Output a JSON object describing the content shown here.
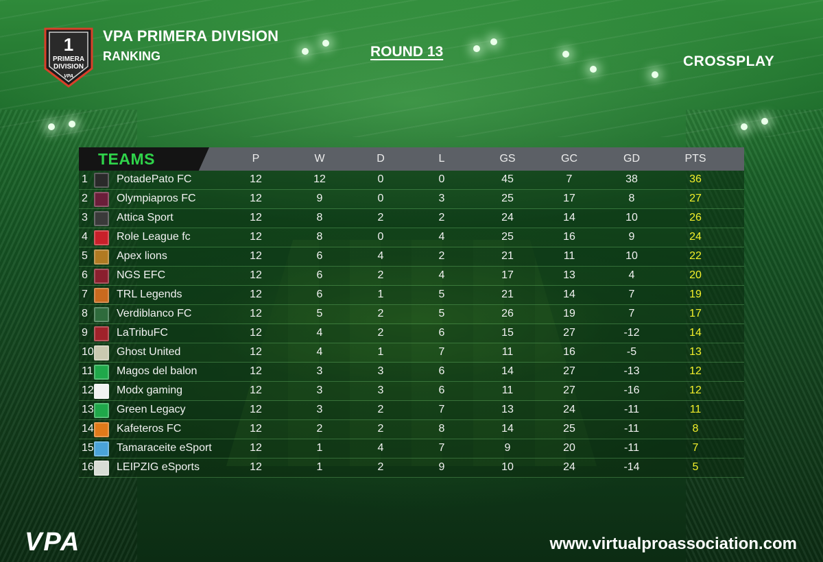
{
  "header": {
    "badge_number": "1",
    "badge_line1": "PRIMERA",
    "badge_line2": "DIVISION",
    "badge_brand": "VPA",
    "title": "VPA PRIMERA DIVISION",
    "subtitle": "RANKING",
    "round": "ROUND 13",
    "platform": "CROSSPLAY"
  },
  "table": {
    "teams_header": "TEAMS",
    "columns": [
      "P",
      "W",
      "D",
      "L",
      "GS",
      "GC",
      "GD",
      "PTS"
    ],
    "rows": [
      {
        "pos": "1",
        "team": "PotadePato FC",
        "P": "12",
        "W": "12",
        "D": "0",
        "L": "0",
        "GS": "45",
        "GC": "7",
        "GD": "38",
        "PTS": "36",
        "logo_color": "#2a2a2a"
      },
      {
        "pos": "2",
        "team": "Olympiapros FC",
        "P": "12",
        "W": "9",
        "D": "0",
        "L": "3",
        "GS": "25",
        "GC": "17",
        "GD": "8",
        "PTS": "27",
        "logo_color": "#6b1e3a"
      },
      {
        "pos": "3",
        "team": "Attica Sport",
        "P": "12",
        "W": "8",
        "D": "2",
        "L": "2",
        "GS": "24",
        "GC": "14",
        "GD": "10",
        "PTS": "26",
        "logo_color": "#3a3a3a"
      },
      {
        "pos": "4",
        "team": "Role League fc",
        "P": "12",
        "W": "8",
        "D": "0",
        "L": "4",
        "GS": "25",
        "GC": "16",
        "GD": "9",
        "PTS": "24",
        "logo_color": "#c8202a"
      },
      {
        "pos": "5",
        "team": "Apex lions",
        "P": "12",
        "W": "6",
        "D": "4",
        "L": "2",
        "GS": "21",
        "GC": "11",
        "GD": "10",
        "PTS": "22",
        "logo_color": "#b07a22"
      },
      {
        "pos": "6",
        "team": "NGS EFC",
        "P": "12",
        "W": "6",
        "D": "2",
        "L": "4",
        "GS": "17",
        "GC": "13",
        "GD": "4",
        "PTS": "20",
        "logo_color": "#8a1f2e"
      },
      {
        "pos": "7",
        "team": "TRL Legends",
        "P": "12",
        "W": "6",
        "D": "1",
        "L": "5",
        "GS": "21",
        "GC": "14",
        "GD": "7",
        "PTS": "19",
        "logo_color": "#c96a1e"
      },
      {
        "pos": "8",
        "team": "Verdiblanco FC",
        "P": "12",
        "W": "5",
        "D": "2",
        "L": "5",
        "GS": "26",
        "GC": "19",
        "GD": "7",
        "PTS": "17",
        "logo_color": "#2e6b3c"
      },
      {
        "pos": "9",
        "team": "LaTribuFC",
        "P": "12",
        "W": "4",
        "D": "2",
        "L": "6",
        "GS": "15",
        "GC": "27",
        "GD": "-12",
        "PTS": "14",
        "logo_color": "#a0222a"
      },
      {
        "pos": "10",
        "team": "Ghost United",
        "P": "12",
        "W": "4",
        "D": "1",
        "L": "7",
        "GS": "11",
        "GC": "16",
        "GD": "-5",
        "PTS": "13",
        "logo_color": "#c9c9b0"
      },
      {
        "pos": "11",
        "team": "Magos del balon",
        "P": "12",
        "W": "3",
        "D": "3",
        "L": "6",
        "GS": "14",
        "GC": "27",
        "GD": "-13",
        "PTS": "12",
        "logo_color": "#1fa84a"
      },
      {
        "pos": "12",
        "team": "Modx gaming",
        "P": "12",
        "W": "3",
        "D": "3",
        "L": "6",
        "GS": "11",
        "GC": "27",
        "GD": "-16",
        "PTS": "12",
        "logo_color": "#f2f2f2"
      },
      {
        "pos": "13",
        "team": "Green Legacy",
        "P": "12",
        "W": "3",
        "D": "2",
        "L": "7",
        "GS": "13",
        "GC": "24",
        "GD": "-11",
        "PTS": "11",
        "logo_color": "#1fa84a"
      },
      {
        "pos": "14",
        "team": "Kafeteros FC",
        "P": "12",
        "W": "2",
        "D": "2",
        "L": "8",
        "GS": "14",
        "GC": "25",
        "GD": "-11",
        "PTS": "8",
        "logo_color": "#e07a1a"
      },
      {
        "pos": "15",
        "team": "Tamaraceite eSport",
        "P": "12",
        "W": "1",
        "D": "4",
        "L": "7",
        "GS": "9",
        "GC": "20",
        "GD": "-11",
        "PTS": "7",
        "logo_color": "#4aa3d8"
      },
      {
        "pos": "16",
        "team": "LEIPZIG eSports",
        "P": "12",
        "W": "1",
        "D": "2",
        "L": "9",
        "GS": "10",
        "GC": "24",
        "GD": "-14",
        "PTS": "5",
        "logo_color": "#d8ddd5"
      }
    ]
  },
  "footer": {
    "logo_text": "VPA",
    "website": "www.virtualproassociation.com"
  },
  "colors": {
    "teams_header": "#2fd34a",
    "points": "#f4f02a",
    "header_bar": "#5c6066"
  }
}
